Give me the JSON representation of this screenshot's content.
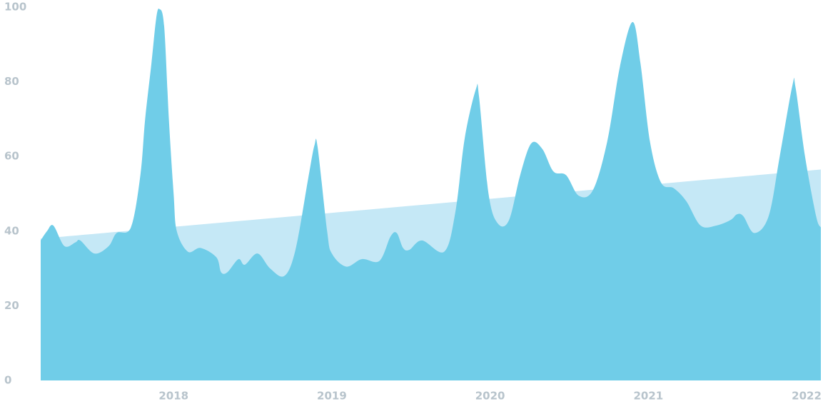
{
  "chart_data": {
    "type": "area",
    "xlim": [
      2017.16,
      2022.09
    ],
    "xticks": [
      2018,
      2019,
      2020,
      2021,
      2022
    ],
    "ylim": [
      0,
      100
    ],
    "yticks": [
      0,
      20,
      40,
      60,
      80,
      100
    ],
    "series": [
      {
        "color": "#c5e8f6",
        "x": [
          2017.16,
          2022.09
        ],
        "values": [
          38,
          56.5
        ]
      },
      {
        "color": "#70cde8",
        "x": [
          2017.16,
          2017.2,
          2017.24,
          2017.31,
          2017.38,
          2017.41,
          2017.5,
          2017.59,
          2017.64,
          2017.73,
          2017.79,
          2017.82,
          2017.86,
          2017.89,
          2017.91,
          2017.94,
          2017.97,
          2018.0,
          2018.02,
          2018.09,
          2018.17,
          2018.27,
          2018.3,
          2018.34,
          2018.41,
          2018.45,
          2018.53,
          2018.61,
          2018.7,
          2018.77,
          2018.85,
          2018.89,
          2018.91,
          2018.97,
          2019.0,
          2019.09,
          2019.19,
          2019.3,
          2019.37,
          2019.41,
          2019.45,
          2019.49,
          2019.57,
          2019.71,
          2019.78,
          2019.84,
          2019.91,
          2019.93,
          2019.99,
          2020.05,
          2020.12,
          2020.19,
          2020.26,
          2020.33,
          2020.4,
          2020.48,
          2020.56,
          2020.65,
          2020.74,
          2020.82,
          2020.9,
          2020.95,
          2021.01,
          2021.08,
          2021.16,
          2021.24,
          2021.33,
          2021.43,
          2021.52,
          2021.56,
          2021.6,
          2021.67,
          2021.76,
          2021.83,
          2021.91,
          2021.93,
          2021.99,
          2022.06,
          2022.09
        ],
        "values": [
          37.5,
          40,
          41.5,
          36,
          37,
          37.5,
          34,
          36,
          39.5,
          41,
          55,
          70,
          85,
          97,
          99.5,
          95,
          70,
          50,
          40,
          34.5,
          35.5,
          33,
          29,
          29,
          32.5,
          31,
          34,
          30,
          28,
          35,
          54,
          63,
          62.5,
          40,
          34,
          30.5,
          32.5,
          32,
          38.5,
          39.5,
          35.5,
          35,
          37.5,
          34.5,
          45,
          65,
          78,
          76,
          50,
          42,
          43,
          55,
          63.5,
          62,
          56,
          55,
          49.5,
          51,
          64,
          84,
          96,
          85,
          64,
          53,
          51.5,
          48,
          41.5,
          41.5,
          43,
          44.5,
          44,
          39.5,
          44,
          60,
          79,
          78.5,
          60,
          44,
          41
        ]
      }
    ]
  }
}
